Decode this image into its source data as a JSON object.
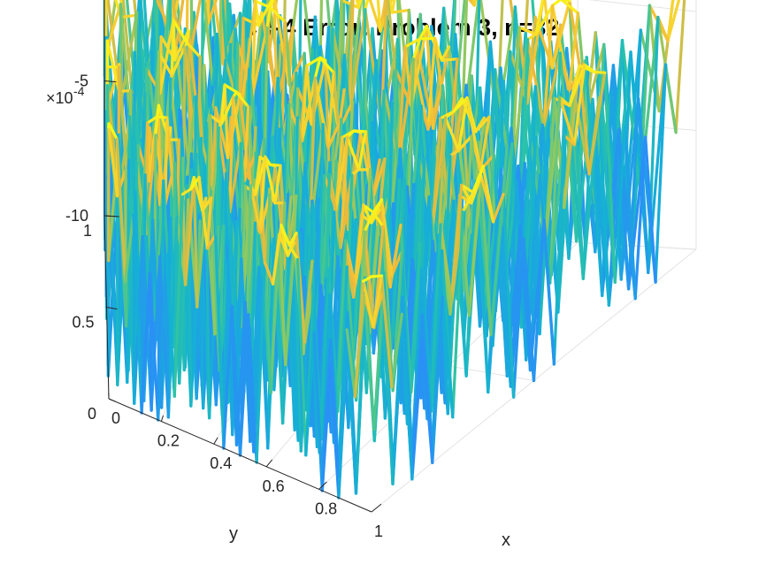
{
  "chart_data": {
    "type": "surface-mesh",
    "title": "CR-4 Error: Problem 3, n=32",
    "xlabel": "x",
    "ylabel": "y",
    "zlabel": "",
    "exponent": {
      "base": "×10",
      "power": "-4"
    },
    "xlim": [
      0,
      1
    ],
    "ylim": [
      0,
      1
    ],
    "zlim": [
      -10,
      5
    ],
    "zscale": 0.0001,
    "xticks": [
      {
        "value": 0,
        "label": "0"
      },
      {
        "value": 0.2,
        "label": "0.2"
      },
      {
        "value": 0.4,
        "label": "0.4"
      },
      {
        "value": 0.6,
        "label": "0.6"
      },
      {
        "value": 0.8,
        "label": "0.8"
      },
      {
        "value": 1,
        "label": "1"
      }
    ],
    "yticks": [
      {
        "value": 0,
        "label": "0"
      },
      {
        "value": 0.5,
        "label": "0.5"
      },
      {
        "value": 1,
        "label": "1"
      }
    ],
    "zticks": [
      {
        "value": -10,
        "label": "-10"
      },
      {
        "value": -5,
        "label": "-5"
      },
      {
        "value": 0,
        "label": "0"
      }
    ],
    "grid": true,
    "colormap": "parula",
    "colormap_stops": [
      "#3e26a8",
      "#4353f0",
      "#2d8bfb",
      "#15b1d4",
      "#2cc3a6",
      "#8ec960",
      "#f0b93b",
      "#fadc2b",
      "#f9fb15"
    ],
    "grid_points_n": 32,
    "surface": {
      "formula": "z = -4.5*(1 - cos(6*pi*x)*cos(6*pi*y)) * (1 + 0.9*(-1)^(i+j)) + 2.5*cos(6*pi*x)*cos(6*pi*y)",
      "description": "3x3 array of peaks (max about 4) with strongly oscillating valleys down to about -10"
    }
  }
}
